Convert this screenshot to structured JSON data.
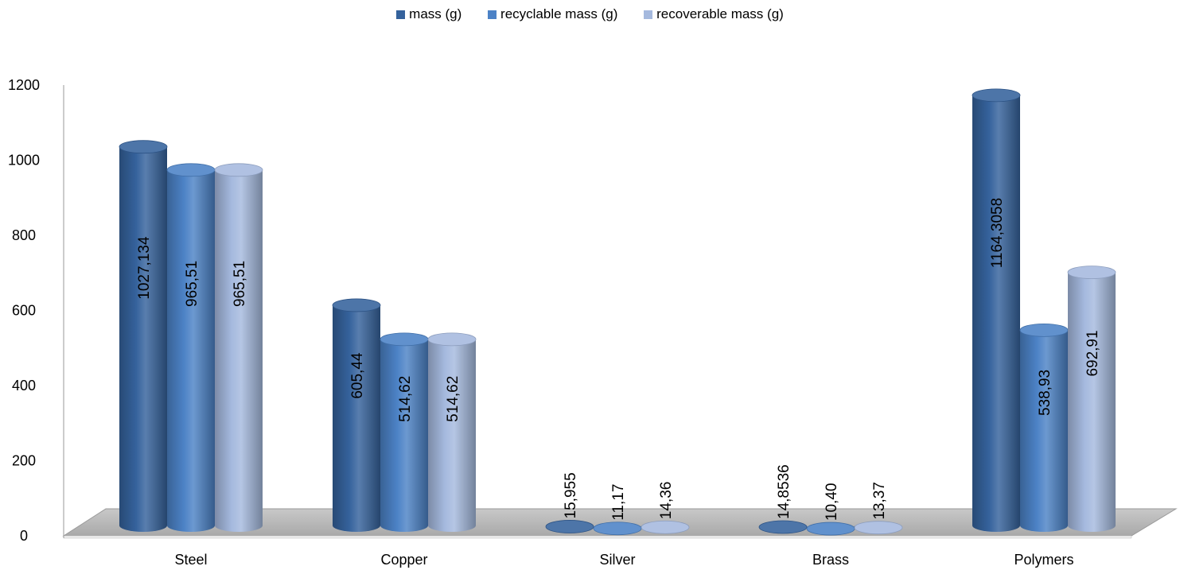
{
  "chart_data": {
    "type": "bar",
    "title": "",
    "xlabel": "",
    "ylabel": "",
    "categories": [
      "Steel",
      "Copper",
      "Silver",
      "Brass",
      "Polymers"
    ],
    "series": [
      {
        "name": "mass (g)",
        "color": "#35629c",
        "values": [
          1027.134,
          605.44,
          15.955,
          14.8536,
          1164.3058
        ],
        "labels": [
          "1027,134",
          "605,44",
          "15,955",
          "14,8536",
          "1164,3058"
        ]
      },
      {
        "name": "recyclable mass (g)",
        "color": "#4c82c6",
        "values": [
          965.51,
          514.62,
          11.17,
          10.4,
          538.93
        ],
        "labels": [
          "965,51",
          "514,62",
          "11,17",
          "10,40",
          "538,93"
        ]
      },
      {
        "name": "recoverable mass (g)",
        "color": "#a5b9de",
        "values": [
          965.51,
          514.62,
          14.36,
          13.37,
          692.91
        ],
        "labels": [
          "965,51",
          "514,62",
          "14,36",
          "13,37",
          "692,91"
        ]
      }
    ],
    "ylim": [
      0,
      1200
    ],
    "yticks": [
      0,
      200,
      400,
      600,
      800,
      1000,
      1200
    ],
    "grid": false,
    "legend_position": "top-center",
    "style": "3d-cylinder"
  }
}
